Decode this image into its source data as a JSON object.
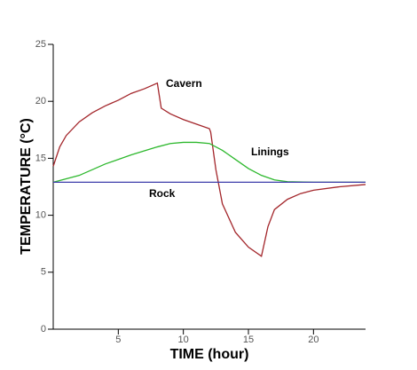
{
  "chart_data": {
    "type": "line",
    "xlabel": "TIME (hour)",
    "ylabel": "TEMPERATURE (°C)",
    "xlim": [
      0,
      24
    ],
    "ylim": [
      0,
      25
    ],
    "xticks": [
      5,
      10,
      15,
      20
    ],
    "yticks": [
      0,
      5,
      10,
      15,
      20,
      25
    ],
    "series": [
      {
        "name": "Cavern",
        "color": "#a3262b",
        "x": [
          0,
          0.5,
          1,
          2,
          3,
          4,
          5,
          6,
          7,
          8,
          8.3,
          9,
          10,
          11,
          12,
          12.1,
          12.5,
          13,
          14,
          15,
          16,
          16.5,
          17,
          18,
          19,
          20,
          22,
          24
        ],
        "values": [
          14.3,
          16,
          17,
          18.2,
          19,
          19.6,
          20.1,
          20.7,
          21.1,
          21.6,
          19.4,
          18.9,
          18.4,
          18,
          17.6,
          17.3,
          14,
          11,
          8.5,
          7.2,
          6.4,
          9,
          10.5,
          11.4,
          11.9,
          12.2,
          12.5,
          12.7
        ]
      },
      {
        "name": "Linings",
        "color": "#2db82d",
        "x": [
          0,
          2,
          4,
          6,
          8,
          9,
          10,
          11,
          12,
          13,
          14,
          15,
          16,
          17,
          18,
          20,
          24
        ],
        "values": [
          12.9,
          13.5,
          14.5,
          15.3,
          16,
          16.3,
          16.4,
          16.4,
          16.3,
          15.7,
          14.9,
          14.1,
          13.5,
          13.1,
          12.95,
          12.9,
          12.9
        ]
      },
      {
        "name": "Rock",
        "color": "#3c3caa",
        "x": [
          0,
          24
        ],
        "values": [
          12.9,
          12.9
        ]
      }
    ]
  }
}
